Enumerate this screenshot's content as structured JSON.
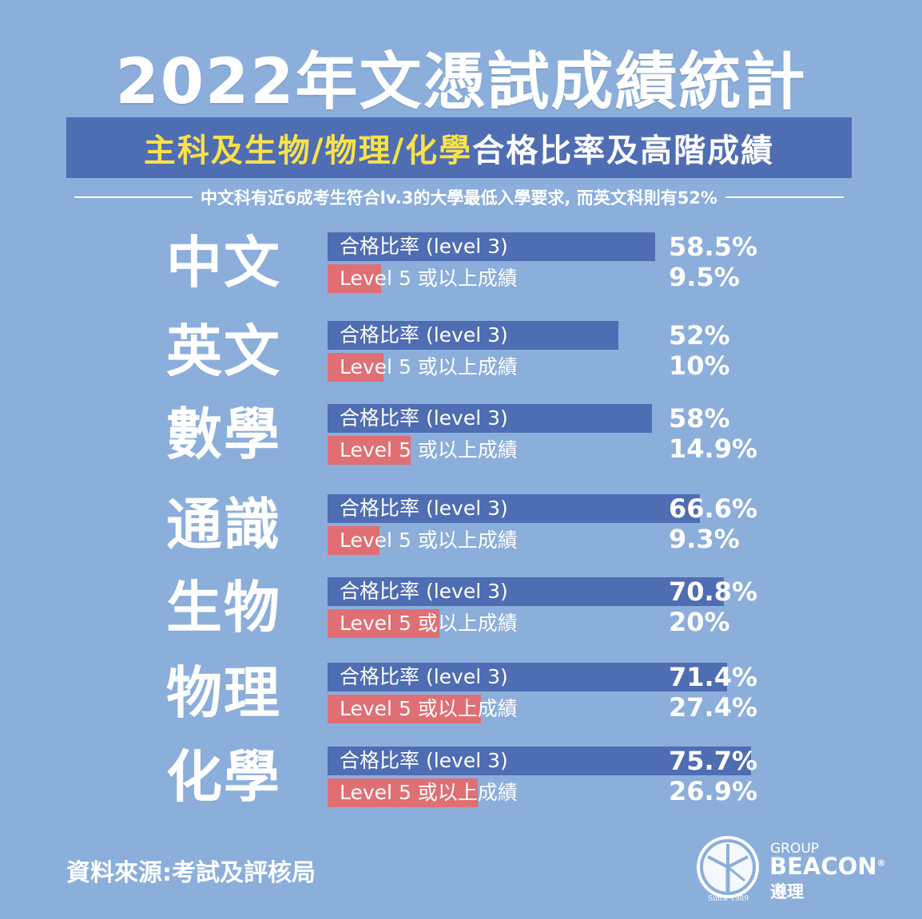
{
  "title": "2022年文憑試成績統計",
  "subtitle": {
    "highlight": "主科及生物/物理/化學",
    "rest": "合格比率及高階成績"
  },
  "tagline": "中文科有近6成考生符合lv.3的大學最低入學要求, 而英文科則有52%",
  "colors": {
    "background": "#8BAEDB",
    "pass_bar": "#4F6DB3",
    "level5_bar": "#E06F73",
    "highlight_text": "#F8E14A"
  },
  "chart_data": {
    "type": "bar",
    "orientation": "horizontal",
    "categories": [
      "中文",
      "英文",
      "數學",
      "通識",
      "生物",
      "物理",
      "化學"
    ],
    "series": [
      {
        "name": "合格比率 (level 3)",
        "values": [
          58.5,
          52,
          58,
          66.6,
          70.8,
          71.4,
          75.7
        ],
        "labels": [
          "58.5%",
          "52%",
          "58%",
          "66.6%",
          "70.8%",
          "71.4%",
          "75.7%"
        ]
      },
      {
        "name": "Level 5 或以上成績",
        "values": [
          9.5,
          10,
          14.9,
          9.3,
          20,
          27.4,
          26.9
        ],
        "labels": [
          "9.5%",
          "10%",
          "14.9%",
          "9.3%",
          "20%",
          "27.4%",
          "26.9%"
        ]
      }
    ],
    "xlim": [
      0,
      100
    ]
  },
  "source": "資料來源:考試及評核局",
  "logo": {
    "group": "GROUP",
    "brand": "BEACON",
    "registered": "®",
    "chinese": "遵理",
    "since": "Since 1989",
    "icon": "beacon-burst-icon"
  }
}
